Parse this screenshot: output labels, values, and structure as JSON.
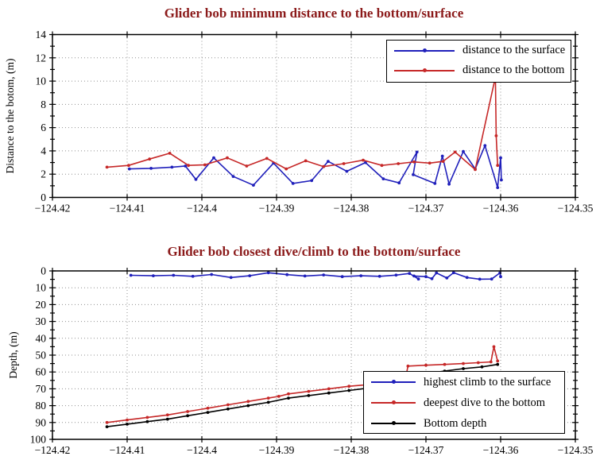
{
  "figure": {
    "background": "#ffffff",
    "title_color": "#8b1a1a",
    "grid_color": "#909090",
    "axis_color": "#000000"
  },
  "chart_data": [
    {
      "type": "line",
      "title": "Glider bob minimum distance to the bottom/surface",
      "xlabel": "",
      "ylabel": "Distance to the botom, (m)",
      "xlim": [
        -124.42,
        -124.35
      ],
      "ylim": [
        0,
        14
      ],
      "y_inverted": false,
      "grid": true,
      "y_minor": 1,
      "xticks": [
        -124.42,
        -124.41,
        -124.4,
        -124.39,
        -124.38,
        -124.37,
        -124.36,
        -124.35
      ],
      "xtick_labels": [
        "−124.42",
        "−124.41",
        "−124.4",
        "−124.39",
        "−124.38",
        "−124.37",
        "−124.36",
        "−124.35"
      ],
      "yticks": [
        0,
        2,
        4,
        6,
        8,
        10,
        12,
        14
      ],
      "ytick_labels": [
        "0",
        "2",
        "4",
        "6",
        "8",
        "10",
        "12",
        "14"
      ],
      "legend_position": "top-right-inside",
      "series": [
        {
          "name": "distance to the surface",
          "color": "#2020bb",
          "marker": "dot",
          "points": [
            [
              -124.4097,
              2.45
            ],
            [
              -124.4068,
              2.5
            ],
            [
              -124.404,
              2.6
            ],
            [
              -124.4022,
              2.7
            ],
            [
              -124.4008,
              1.55
            ],
            [
              -124.3984,
              3.4
            ],
            [
              -124.3958,
              1.8
            ],
            [
              -124.3931,
              1.05
            ],
            [
              -124.3904,
              2.95
            ],
            [
              -124.3878,
              1.2
            ],
            [
              -124.3853,
              1.45
            ],
            [
              -124.3831,
              3.1
            ],
            [
              -124.3806,
              2.25
            ],
            [
              -124.3781,
              3.0
            ],
            [
              -124.3757,
              1.6
            ],
            [
              -124.3736,
              1.25
            ],
            [
              -124.3712,
              3.9
            ],
            [
              -124.3717,
              1.95
            ],
            [
              -124.3688,
              1.2
            ],
            [
              -124.3678,
              3.55
            ],
            [
              -124.3669,
              1.15
            ],
            [
              -124.365,
              3.95
            ],
            [
              -124.3634,
              2.45
            ],
            [
              -124.3621,
              4.45
            ],
            [
              -124.3604,
              0.85
            ],
            [
              -124.36,
              3.4
            ],
            [
              -124.3599,
              1.5
            ]
          ]
        },
        {
          "name": "distance to the bottom",
          "color": "#c62828",
          "marker": "dot",
          "points": [
            [
              -124.4127,
              2.6
            ],
            [
              -124.4098,
              2.75
            ],
            [
              -124.407,
              3.3
            ],
            [
              -124.4043,
              3.8
            ],
            [
              -124.4018,
              2.75
            ],
            [
              -124.3996,
              2.8
            ],
            [
              -124.3966,
              3.4
            ],
            [
              -124.394,
              2.7
            ],
            [
              -124.3913,
              3.35
            ],
            [
              -124.3887,
              2.45
            ],
            [
              -124.3861,
              3.15
            ],
            [
              -124.3837,
              2.65
            ],
            [
              -124.381,
              2.9
            ],
            [
              -124.3784,
              3.2
            ],
            [
              -124.3759,
              2.75
            ],
            [
              -124.3737,
              2.9
            ],
            [
              -124.3716,
              3.05
            ],
            [
              -124.3695,
              2.95
            ],
            [
              -124.3677,
              3.1
            ],
            [
              -124.3661,
              3.9
            ],
            [
              -124.3634,
              2.4
            ],
            [
              -124.3607,
              10.35
            ],
            [
              -124.3606,
              5.3
            ],
            [
              -124.3604,
              2.75
            ]
          ]
        }
      ]
    },
    {
      "type": "line",
      "title": "Glider bob closest dive/climb to the bottom/surface",
      "xlabel": "",
      "ylabel": "Depth, (m)",
      "xlim": [
        -124.42,
        -124.35
      ],
      "ylim": [
        0,
        100
      ],
      "y_inverted": true,
      "grid": true,
      "y_minor": 5,
      "xticks": [
        -124.42,
        -124.41,
        -124.4,
        -124.39,
        -124.38,
        -124.37,
        -124.36,
        -124.35
      ],
      "xtick_labels": [
        "−124.42",
        "−124.41",
        "−124.4",
        "−124.39",
        "−124.38",
        "−124.37",
        "−124.36",
        "−124.35"
      ],
      "yticks": [
        0,
        10,
        20,
        30,
        40,
        50,
        60,
        70,
        80,
        90,
        100
      ],
      "ytick_labels": [
        "0",
        "10",
        "20",
        "30",
        "40",
        "50",
        "60",
        "70",
        "80",
        "90",
        "100"
      ],
      "legend_position": "bottom-right-inside",
      "series": [
        {
          "name": "highest climb to the surface",
          "color": "#2020bb",
          "marker": "dot",
          "points": [
            [
              -124.4095,
              2.6
            ],
            [
              -124.4065,
              2.9
            ],
            [
              -124.4038,
              2.6
            ],
            [
              -124.4012,
              3.2
            ],
            [
              -124.3987,
              2.1
            ],
            [
              -124.3961,
              3.9
            ],
            [
              -124.3936,
              2.9
            ],
            [
              -124.3911,
              1.1
            ],
            [
              -124.3886,
              2.2
            ],
            [
              -124.3862,
              3.0
            ],
            [
              -124.3837,
              2.4
            ],
            [
              -124.3812,
              3.4
            ],
            [
              -124.3787,
              2.9
            ],
            [
              -124.3762,
              3.2
            ],
            [
              -124.374,
              2.5
            ],
            [
              -124.3722,
              1.5
            ],
            [
              -124.371,
              4.8
            ],
            [
              -124.3716,
              3.0
            ],
            [
              -124.37,
              3.4
            ],
            [
              -124.3692,
              4.6
            ],
            [
              -124.3686,
              1.2
            ],
            [
              -124.3672,
              4.2
            ],
            [
              -124.3663,
              1.1
            ],
            [
              -124.3645,
              3.9
            ],
            [
              -124.3628,
              4.9
            ],
            [
              -124.3612,
              4.8
            ],
            [
              -124.3601,
              1.2
            ],
            [
              -124.36,
              3.4
            ]
          ]
        },
        {
          "name": "deepest dive to the bottom",
          "color": "#c62828",
          "marker": "dot",
          "points": [
            [
              -124.4127,
              90.0
            ],
            [
              -124.41,
              88.5
            ],
            [
              -124.4073,
              87.0
            ],
            [
              -124.4046,
              85.5
            ],
            [
              -124.4019,
              83.5
            ],
            [
              -124.3992,
              81.5
            ],
            [
              -124.3965,
              79.5
            ],
            [
              -124.3938,
              77.5
            ],
            [
              -124.3911,
              75.5
            ],
            [
              -124.3897,
              74.5
            ],
            [
              -124.3884,
              73.0
            ],
            [
              -124.3857,
              71.5
            ],
            [
              -124.383,
              70.0
            ],
            [
              -124.3803,
              68.5
            ],
            [
              -124.3776,
              67.5
            ],
            [
              -124.3752,
              66.5
            ],
            [
              -124.3728,
              65.0
            ],
            [
              -124.3724,
              56.5
            ],
            [
              -124.37,
              56.0
            ],
            [
              -124.3675,
              55.5
            ],
            [
              -124.365,
              55.0
            ],
            [
              -124.363,
              54.5
            ],
            [
              -124.3613,
              54.0
            ],
            [
              -124.3609,
              45.0
            ],
            [
              -124.3604,
              53.5
            ]
          ]
        },
        {
          "name": "Bottom depth",
          "color": "#000000",
          "marker": "dot",
          "points": [
            [
              -124.4127,
              92.5
            ],
            [
              -124.41,
              91.0
            ],
            [
              -124.4073,
              89.5
            ],
            [
              -124.4046,
              88.0
            ],
            [
              -124.4019,
              86.0
            ],
            [
              -124.3992,
              84.0
            ],
            [
              -124.3965,
              82.0
            ],
            [
              -124.3938,
              80.0
            ],
            [
              -124.3911,
              78.0
            ],
            [
              -124.3884,
              75.5
            ],
            [
              -124.3857,
              74.0
            ],
            [
              -124.383,
              72.5
            ],
            [
              -124.3803,
              71.0
            ],
            [
              -124.3776,
              69.5
            ],
            [
              -124.3752,
              68.0
            ],
            [
              -124.3728,
              66.5
            ],
            [
              -124.3724,
              62.5
            ],
            [
              -124.37,
              61.0
            ],
            [
              -124.3675,
              59.5
            ],
            [
              -124.365,
              58.0
            ],
            [
              -124.3625,
              57.0
            ],
            [
              -124.3604,
              55.5
            ]
          ]
        }
      ]
    }
  ]
}
